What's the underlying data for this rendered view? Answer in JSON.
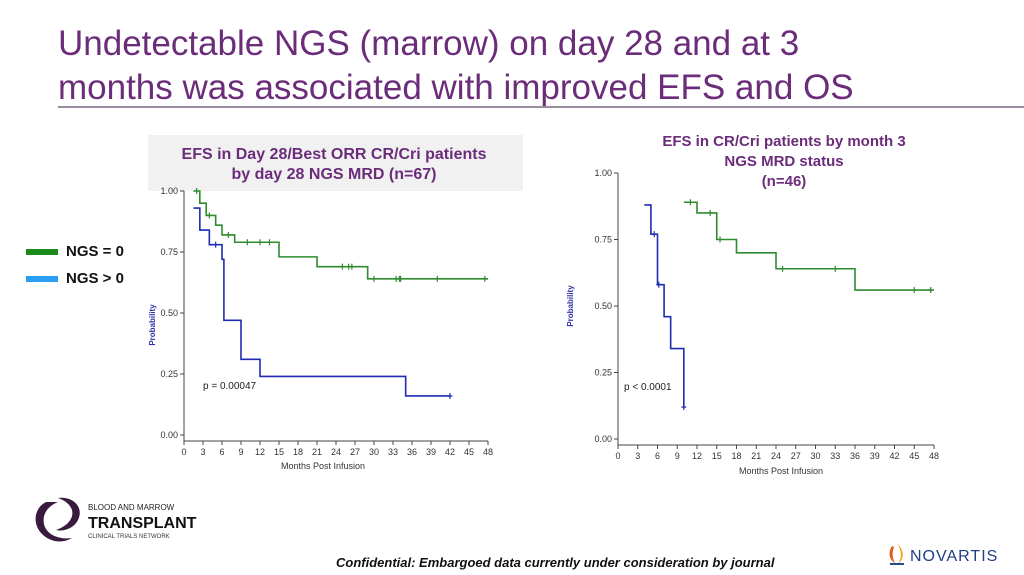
{
  "slide": {
    "title_line1": "Undetectable NGS (marrow) on day 28 and at 3",
    "title_line2": "months was associated with improved EFS and OS",
    "footer": "Confidential: Embargoed data currently under consideration by journal",
    "legend": [
      {
        "label": "NGS = 0",
        "color": "#1a8a1a"
      },
      {
        "label": "NGS > 0",
        "color": "#2a9df4"
      }
    ],
    "logos": {
      "bmt_line1": "BLOOD AND MARROW",
      "bmt_line2": "TRANSPLANT",
      "bmt_line3": "CLINICAL TRIALS NETWORK",
      "novartis": "NOVARTIS"
    }
  },
  "chart_data": [
    {
      "type": "line",
      "step": true,
      "title_line1": "EFS in Day 28/Best ORR CR/Cri patients",
      "title_line2": "by day 28 NGS MRD (n=67)",
      "xlabel": "Months Post Infusion",
      "ylabel": "Probability",
      "xticks": [
        0,
        3,
        6,
        9,
        12,
        15,
        18,
        21,
        24,
        27,
        30,
        33,
        36,
        39,
        42,
        45,
        48
      ],
      "yticks": [
        "0.00",
        "0.25",
        "0.50",
        "0.75",
        "1.00"
      ],
      "xlim": [
        0,
        48
      ],
      "ylim": [
        0,
        1
      ],
      "annotation": "p = 0.00047",
      "series": [
        {
          "color": "#2e8b2e",
          "x": [
            1.5,
            2.5,
            3.5,
            5,
            6,
            8,
            15,
            21,
            29,
            48
          ],
          "y": [
            1.0,
            0.95,
            0.9,
            0.86,
            0.82,
            0.79,
            0.73,
            0.69,
            0.64,
            0.64
          ],
          "censor_x": [
            2,
            4,
            7,
            10,
            12,
            13.5,
            25,
            26,
            26.5,
            30,
            33.5,
            34,
            34.2,
            40,
            47.5
          ]
        },
        {
          "color": "#1f2bb0",
          "x": [
            1.5,
            2.5,
            4,
            6,
            6.3,
            9,
            12,
            35,
            42
          ],
          "y": [
            0.93,
            0.84,
            0.78,
            0.72,
            0.47,
            0.31,
            0.24,
            0.16,
            0.16
          ],
          "censor_x": [
            5,
            42
          ]
        }
      ]
    },
    {
      "type": "line",
      "step": true,
      "title_line1": "EFS in CR/Cri patients by month 3",
      "title_line2": "NGS MRD status",
      "title_line3": "(n=46)",
      "xlabel": "Months Post Infusion",
      "ylabel": "Probability",
      "xticks": [
        0,
        3,
        6,
        9,
        12,
        15,
        18,
        21,
        24,
        27,
        30,
        33,
        36,
        39,
        42,
        45,
        48
      ],
      "yticks": [
        "0.00",
        "0.25",
        "0.50",
        "0.75",
        "1.00"
      ],
      "xlim": [
        0,
        48
      ],
      "ylim": [
        0,
        1
      ],
      "annotation": "p < 0.0001",
      "series": [
        {
          "color": "#2e8b2e",
          "x": [
            10,
            12,
            15,
            18,
            24,
            36,
            48
          ],
          "y": [
            0.89,
            0.85,
            0.75,
            0.7,
            0.64,
            0.56,
            0.56
          ],
          "censor_x": [
            11,
            14,
            15.5,
            25,
            33,
            45,
            47.5
          ]
        },
        {
          "color": "#1f2bb0",
          "x": [
            4,
            5,
            6,
            7,
            8,
            10
          ],
          "y": [
            0.88,
            0.77,
            0.58,
            0.46,
            0.34,
            0.12
          ],
          "censor_x": [
            5.5,
            6.2,
            10
          ]
        }
      ]
    }
  ]
}
